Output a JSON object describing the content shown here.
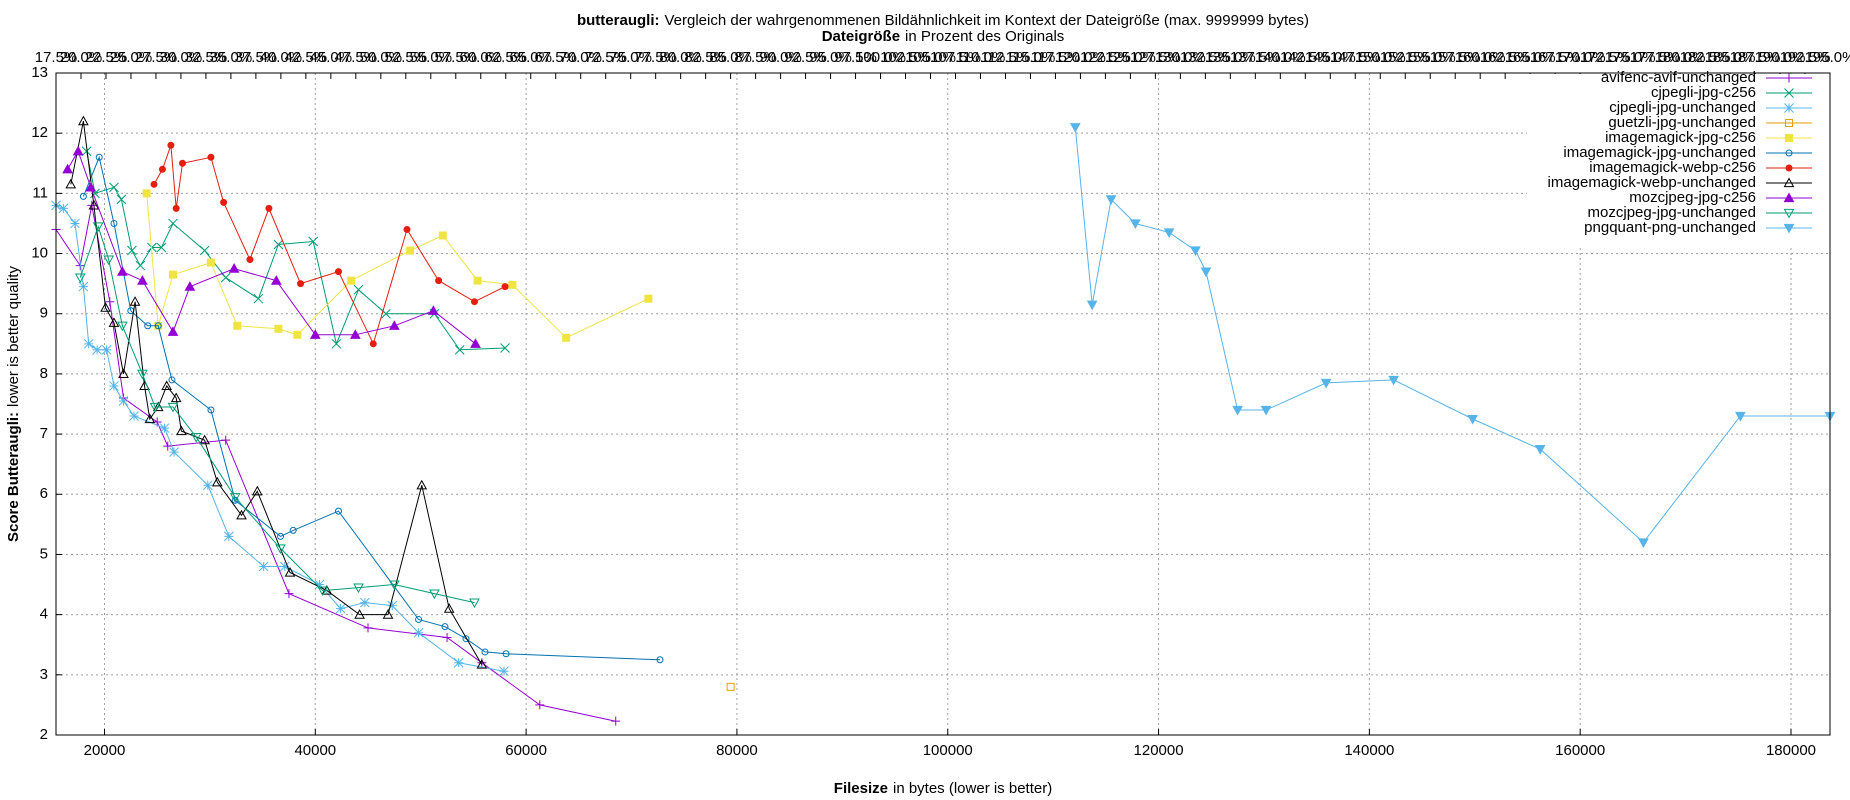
{
  "chart_data": {
    "type": "line",
    "title_bold": "butteraugli:",
    "title_rest": "Vergleich der wahrgenommenen Bildähnlichkeit im Kontext der Dateigröße (max. 9999999 bytes)",
    "subtitle_bold": "Dateigröße",
    "subtitle_rest": "in Prozent des Originals",
    "xlabel_bold": "Filesize",
    "xlabel_rest": "in bytes (lower is better)",
    "ylabel_bold": "Score Butteraugli:",
    "ylabel_rest": "lower is better quality",
    "xlim": [
      15400,
      183700
    ],
    "xticks": [
      20000,
      40000,
      60000,
      80000,
      100000,
      120000,
      140000,
      160000,
      180000
    ],
    "ylim": [
      2,
      13
    ],
    "yticks": [
      2,
      3,
      4,
      5,
      6,
      7,
      8,
      9,
      10,
      11,
      12,
      13
    ],
    "x2lim": [
      17.5,
      195
    ],
    "x2ticks": [
      {
        "value": 17.5,
        "label": "17.5%"
      },
      {
        "value": 20,
        "label": "20.0%"
      },
      {
        "value": 22.5,
        "label": "22.5%"
      },
      {
        "value": 25,
        "label": "25.0%"
      },
      {
        "value": 27.5,
        "label": "27.5%"
      },
      {
        "value": 30,
        "label": "30.0%"
      },
      {
        "value": 32.5,
        "label": "32.5%"
      },
      {
        "value": 35,
        "label": "35.0%"
      },
      {
        "value": 37.5,
        "label": "37.5%"
      },
      {
        "value": 40,
        "label": "40.0%"
      },
      {
        "value": 42.5,
        "label": "42.5%"
      },
      {
        "value": 45,
        "label": "45.0%"
      },
      {
        "value": 47.5,
        "label": "47.5%"
      },
      {
        "value": 50,
        "label": "50.0%"
      },
      {
        "value": 52.5,
        "label": "52.5%"
      },
      {
        "value": 55,
        "label": "55.0%"
      },
      {
        "value": 57.5,
        "label": "57.5%"
      },
      {
        "value": 60,
        "label": "60.0%"
      },
      {
        "value": 62.5,
        "label": "62.5%"
      },
      {
        "value": 65,
        "label": "65.0%"
      },
      {
        "value": 67.5,
        "label": "67.5%"
      },
      {
        "value": 70,
        "label": "70.0%"
      },
      {
        "value": 72.5,
        "label": "72.5%"
      },
      {
        "value": 75,
        "label": "75.0%"
      },
      {
        "value": 77.5,
        "label": "77.5%"
      },
      {
        "value": 80,
        "label": "80.0%"
      },
      {
        "value": 82.5,
        "label": "82.5%"
      },
      {
        "value": 85,
        "label": "85.0%"
      },
      {
        "value": 87.5,
        "label": "87.5%"
      },
      {
        "value": 90,
        "label": "90.0%"
      },
      {
        "value": 92.5,
        "label": "92.5%"
      },
      {
        "value": 95,
        "label": "95.0%"
      },
      {
        "value": 97.5,
        "label": "97.5%"
      },
      {
        "value": 100,
        "label": "100.0%"
      },
      {
        "value": 102.5,
        "label": "102.5%"
      },
      {
        "value": 105,
        "label": "105.0%"
      },
      {
        "value": 107.5,
        "label": "107.5%"
      },
      {
        "value": 110,
        "label": "110.0%"
      },
      {
        "value": 112.5,
        "label": "112.5%"
      },
      {
        "value": 115,
        "label": "115.0%"
      },
      {
        "value": 117.5,
        "label": "117.5%"
      },
      {
        "value": 120,
        "label": "120.0%"
      },
      {
        "value": 122.5,
        "label": "122.5%"
      },
      {
        "value": 125,
        "label": "125.0%"
      },
      {
        "value": 127.5,
        "label": "127.5%"
      },
      {
        "value": 130,
        "label": "130.0%"
      },
      {
        "value": 132.5,
        "label": "132.5%"
      },
      {
        "value": 135,
        "label": "135.0%"
      },
      {
        "value": 137.5,
        "label": "137.5%"
      },
      {
        "value": 140,
        "label": "140.0%"
      },
      {
        "value": 142.5,
        "label": "142.5%"
      },
      {
        "value": 145,
        "label": "145.0%"
      },
      {
        "value": 147.5,
        "label": "147.5%"
      },
      {
        "value": 150,
        "label": "150.0%"
      },
      {
        "value": 152.5,
        "label": "152.5%"
      },
      {
        "value": 155,
        "label": "155.0%"
      },
      {
        "value": 157.5,
        "label": "157.5%"
      },
      {
        "value": 160,
        "label": "160.0%"
      },
      {
        "value": 162.5,
        "label": "162.5%"
      },
      {
        "value": 165,
        "label": "165.0%"
      },
      {
        "value": 167.5,
        "label": "167.5%"
      },
      {
        "value": 170,
        "label": "170.0%"
      },
      {
        "value": 172.5,
        "label": "172.5%"
      },
      {
        "value": 175,
        "label": "175.0%"
      },
      {
        "value": 177.5,
        "label": "177.5%"
      },
      {
        "value": 180,
        "label": "180.0%"
      },
      {
        "value": 182.5,
        "label": "182.5%"
      },
      {
        "value": 185,
        "label": "185.0%"
      },
      {
        "value": 187.5,
        "label": "187.5%"
      },
      {
        "value": 190,
        "label": "190.0%"
      },
      {
        "value": 192.5,
        "label": "192.5%"
      },
      {
        "value": 195,
        "label": "195.0%"
      }
    ],
    "grid": true,
    "series": [
      {
        "name": "avifenc-avif-unchanged",
        "color": "#9400d3",
        "marker": "plus",
        "x": [
          15400,
          17700,
          18800,
          20500,
          21800,
          25000,
          26000,
          31500,
          37500,
          45000,
          52500,
          55800,
          61300,
          68500
        ],
        "values": [
          10.4,
          9.8,
          10.8,
          9.2,
          7.6,
          7.2,
          6.8,
          6.9,
          4.35,
          3.78,
          3.62,
          3.2,
          2.5,
          2.23
        ]
      },
      {
        "name": "cjpegli-jpg-c256",
        "color": "#009e73",
        "marker": "cross",
        "x": [
          18300,
          19100,
          20900,
          21600,
          22600,
          23400,
          24500,
          25400,
          26500,
          29500,
          31500,
          34600,
          36500,
          39800,
          42000,
          44100,
          46700,
          51300,
          53700,
          58000
        ],
        "values": [
          11.7,
          11.0,
          11.1,
          10.9,
          10.05,
          9.8,
          10.1,
          10.1,
          10.5,
          10.05,
          9.6,
          9.25,
          10.15,
          10.2,
          8.5,
          9.4,
          9.0,
          9.0,
          8.4,
          8.43
        ]
      },
      {
        "name": "cjpegli-jpg-unchanged",
        "color": "#56b4e9",
        "marker": "star",
        "x": [
          15400,
          16100,
          17200,
          18000,
          18500,
          19300,
          20200,
          20900,
          21800,
          22800,
          25700,
          26600,
          29800,
          31800,
          35100,
          37100,
          40400,
          42400,
          44700,
          47300,
          49800,
          53600,
          57900
        ],
        "values": [
          10.8,
          10.75,
          10.5,
          9.45,
          8.5,
          8.4,
          8.4,
          7.8,
          7.55,
          7.3,
          7.1,
          6.7,
          6.15,
          5.3,
          4.8,
          4.8,
          4.5,
          4.1,
          4.2,
          4.15,
          3.7,
          3.2,
          3.06
        ]
      },
      {
        "name": "guetzli-jpg-unchanged",
        "color": "#e69f00",
        "marker": "square-open",
        "x": [
          79400
        ],
        "values": [
          2.8
        ]
      },
      {
        "name": "imagemagick-jpg-c256",
        "color": "#f0e442",
        "marker": "square",
        "x": [
          24000,
          25100,
          26500,
          30100,
          32600,
          36500,
          38300,
          43400,
          49000,
          52100,
          55400,
          58700,
          63800,
          71600
        ],
        "values": [
          11.0,
          8.8,
          9.65,
          9.85,
          8.8,
          8.75,
          8.65,
          9.55,
          10.05,
          10.3,
          9.55,
          9.48,
          8.6,
          9.25
        ]
      },
      {
        "name": "imagemagick-jpg-unchanged",
        "color": "#0072b2",
        "marker": "circle-open",
        "x": [
          18000,
          19500,
          20900,
          22500,
          24100,
          25100,
          26400,
          30100,
          32400,
          36700,
          37900,
          42200,
          49800,
          52300,
          54300,
          56100,
          58100,
          72700
        ],
        "values": [
          10.95,
          11.6,
          10.5,
          9.05,
          8.8,
          8.8,
          7.9,
          7.4,
          5.9,
          5.3,
          5.4,
          5.72,
          3.92,
          3.8,
          3.6,
          3.38,
          3.35,
          3.25
        ]
      },
      {
        "name": "imagemagick-webp-c256",
        "color": "#e51e10",
        "marker": "circle",
        "x": [
          24700,
          25500,
          26300,
          26800,
          27400,
          30100,
          31300,
          33800,
          35600,
          38600,
          42200,
          45500,
          48700,
          51700,
          55100,
          58000
        ],
        "values": [
          11.15,
          11.4,
          11.8,
          10.75,
          11.5,
          11.6,
          10.85,
          9.9,
          10.75,
          9.5,
          9.7,
          8.5,
          10.4,
          9.55,
          9.2,
          9.45
        ]
      },
      {
        "name": "imagemagick-webp-unchanged",
        "color": "#000000",
        "marker": "triangle-open",
        "x": [
          16800,
          18000,
          19000,
          20100,
          20900,
          21800,
          22900,
          23800,
          24300,
          25100,
          25900,
          26800,
          27300,
          29500,
          30700,
          33000,
          34500,
          37600,
          41100,
          44200,
          46900,
          50100,
          52700,
          55800
        ],
        "values": [
          11.15,
          12.2,
          10.8,
          9.1,
          8.85,
          8.0,
          9.2,
          7.8,
          7.25,
          7.45,
          7.8,
          7.6,
          7.05,
          6.9,
          6.2,
          5.65,
          6.05,
          4.7,
          4.4,
          4.0,
          4.0,
          6.15,
          4.1,
          3.17
        ]
      },
      {
        "name": "mozcjpeg-jpg-c256",
        "color": "#9400d3",
        "marker": "triangle",
        "x": [
          16500,
          17500,
          18700,
          21700,
          23600,
          26500,
          28100,
          32300,
          36300,
          40000,
          43800,
          47500,
          51200,
          55200
        ],
        "values": [
          11.4,
          11.7,
          11.1,
          9.7,
          9.55,
          8.7,
          9.45,
          9.75,
          9.55,
          8.65,
          8.65,
          8.8,
          9.05,
          8.5
        ]
      },
      {
        "name": "mozcjpeg-jpg-unchanged",
        "color": "#009e73",
        "marker": "triangle-down-open",
        "x": [
          17700,
          19400,
          20400,
          21700,
          23600,
          24800,
          26500,
          28700,
          32400,
          36700,
          40700,
          44100,
          47500,
          51300,
          55100
        ],
        "values": [
          9.6,
          10.45,
          9.9,
          8.8,
          8.0,
          7.45,
          7.45,
          6.95,
          5.95,
          5.1,
          4.4,
          4.45,
          4.5,
          4.35,
          4.2
        ]
      },
      {
        "name": "pngquant-png-unchanged",
        "color": "#56b4e9",
        "marker": "triangle-down",
        "x": [
          112100,
          113700,
          115500,
          117800,
          121000,
          123500,
          124500,
          127500,
          130200,
          135900,
          142300,
          149800,
          156200,
          166000,
          175200,
          183700
        ],
        "values": [
          12.1,
          9.15,
          10.9,
          10.5,
          10.35,
          10.05,
          9.7,
          7.4,
          7.4,
          7.85,
          7.9,
          7.25,
          6.75,
          5.2,
          7.3,
          7.3
        ]
      }
    ]
  }
}
